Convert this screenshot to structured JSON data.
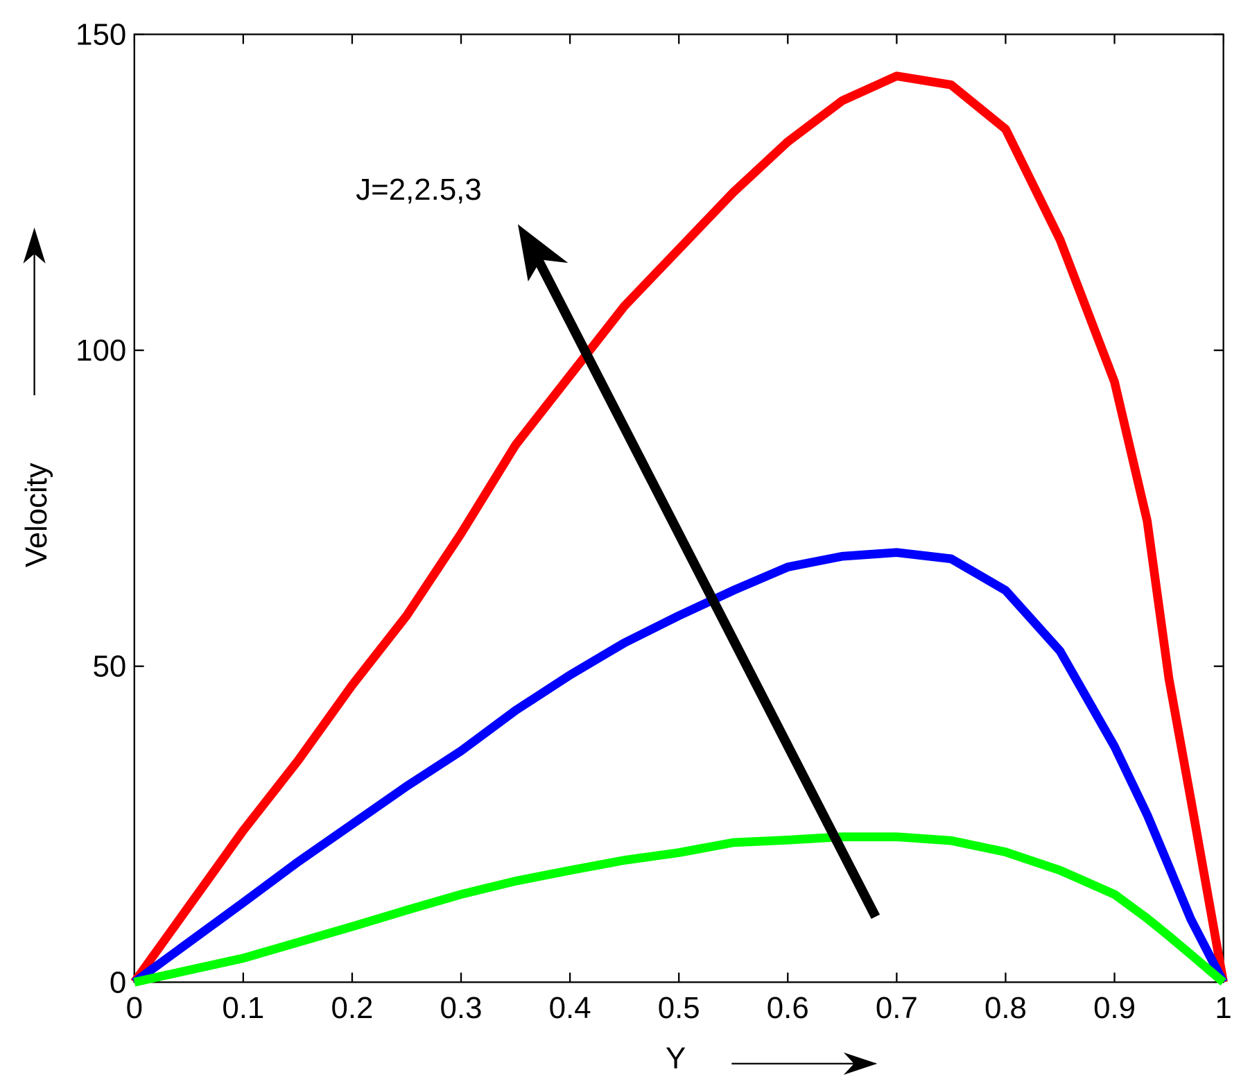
{
  "chart_data": {
    "type": "line",
    "xlabel": "Y",
    "ylabel": "Velocity",
    "annotation": "J=2,2.5,3",
    "x": [
      0,
      0.05,
      0.1,
      0.15,
      0.2,
      0.25,
      0.3,
      0.35,
      0.4,
      0.45,
      0.5,
      0.55,
      0.6,
      0.65,
      0.7,
      0.75,
      0.8,
      0.85,
      0.9,
      0.93,
      0.95,
      0.97,
      1
    ],
    "series": [
      {
        "color": "#ff0000",
        "values": [
          0,
          12,
          24,
          35,
          47,
          58,
          71,
          85,
          96,
          107,
          116,
          125,
          133,
          139.5,
          143.4,
          142,
          135,
          117.5,
          95,
          73,
          48,
          29,
          0
        ]
      },
      {
        "color": "#0000ff",
        "values": [
          0,
          6.3,
          12.6,
          19,
          25,
          31,
          36.6,
          43,
          48.6,
          53.7,
          58,
          62,
          65.7,
          67.4,
          68,
          67,
          62,
          52.4,
          37.3,
          26.5,
          18.3,
          10,
          0
        ]
      },
      {
        "color": "#00ff00",
        "values": [
          0,
          1.9,
          3.8,
          6.3,
          8.8,
          11.4,
          13.9,
          16,
          17.7,
          19.3,
          20.5,
          22.1,
          22.5,
          23,
          23,
          22.4,
          20.6,
          17.7,
          13.9,
          10.1,
          7.3,
          4.4,
          0
        ]
      }
    ],
    "xlim": [
      0,
      1
    ],
    "xticks": [
      0,
      0.1,
      0.2,
      0.3,
      0.4,
      0.5,
      0.6,
      0.7,
      0.8,
      0.9,
      1
    ],
    "ylim": [
      0,
      150
    ],
    "yticks": [
      0,
      50,
      100,
      150
    ]
  }
}
